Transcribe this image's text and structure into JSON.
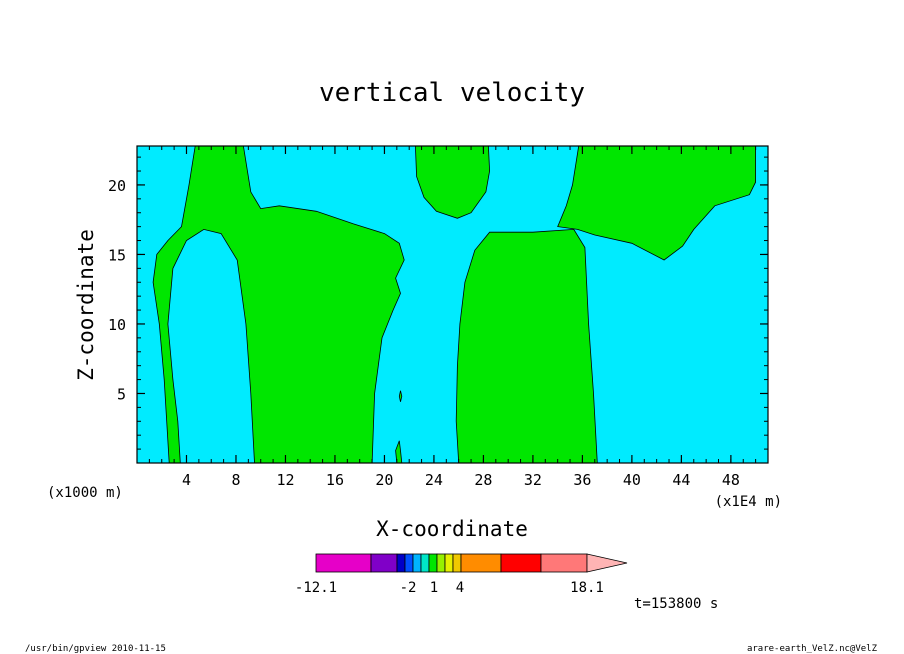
{
  "chart_data": {
    "type": "heatmap",
    "title": "vertical velocity",
    "xlabel": "X-coordinate",
    "ylabel": "Z-coordinate",
    "x_unit_left": "(x1000 m)",
    "x_unit_right": "(x1E4 m)",
    "x_ticks": [
      4,
      8,
      12,
      16,
      20,
      24,
      28,
      32,
      36,
      40,
      44,
      48
    ],
    "y_ticks": [
      5,
      10,
      15,
      20
    ],
    "xlim": [
      0,
      51
    ],
    "ylim": [
      0,
      22.8
    ],
    "fill_colors": {
      "positive": "#00e600",
      "negative": "#00ebff"
    },
    "regions": [
      {
        "sign": "positive",
        "outline": [
          [
            2.6,
            0
          ],
          [
            3.5,
            0
          ],
          [
            3.3,
            3
          ],
          [
            2.9,
            6
          ],
          [
            2.5,
            10
          ],
          [
            2.9,
            14
          ],
          [
            4,
            16
          ],
          [
            5.4,
            16.8
          ],
          [
            6.8,
            16.5
          ],
          [
            8.1,
            14.6
          ],
          [
            8.8,
            10
          ],
          [
            9.2,
            5
          ],
          [
            9.5,
            0
          ],
          [
            19,
            0
          ],
          [
            19.2,
            5
          ],
          [
            19.8,
            9
          ],
          [
            20.7,
            11
          ],
          [
            21.3,
            12.2
          ],
          [
            20.9,
            13.3
          ],
          [
            21.6,
            14.6
          ],
          [
            21.2,
            15.8
          ],
          [
            20,
            16.5
          ],
          [
            17.5,
            17.2
          ],
          [
            14.5,
            18.1
          ],
          [
            11.5,
            18.5
          ],
          [
            10,
            18.3
          ],
          [
            9.2,
            19.5
          ],
          [
            8.6,
            22.8
          ],
          [
            4.7,
            22.8
          ],
          [
            4.2,
            20
          ],
          [
            3.6,
            17
          ],
          [
            2.5,
            16
          ],
          [
            1.6,
            15
          ],
          [
            1.3,
            13
          ],
          [
            1.8,
            10
          ],
          [
            2.2,
            6
          ],
          [
            2.4,
            3
          ]
        ]
      },
      {
        "sign": "positive",
        "outline": [
          [
            21.0,
            0
          ],
          [
            21.4,
            0
          ],
          [
            21.3,
            0.9
          ],
          [
            21.2,
            1.6
          ],
          [
            20.9,
            0.9
          ]
        ]
      },
      {
        "sign": "positive",
        "outline": [
          [
            21.3,
            4.4
          ],
          [
            21.4,
            4.8
          ],
          [
            21.3,
            5.2
          ],
          [
            21.2,
            4.8
          ]
        ]
      },
      {
        "sign": "positive",
        "outline": [
          [
            26,
            0
          ],
          [
            37.2,
            0
          ],
          [
            36.9,
            5
          ],
          [
            36.5,
            10
          ],
          [
            36.2,
            15.5
          ],
          [
            35.3,
            16.8
          ],
          [
            32,
            16.6
          ],
          [
            28.5,
            16.6
          ],
          [
            27.3,
            15.3
          ],
          [
            26.5,
            13
          ],
          [
            26.1,
            10
          ],
          [
            25.9,
            7
          ],
          [
            25.8,
            3
          ]
        ]
      },
      {
        "sign": "positive",
        "outline": [
          [
            21.9,
            22.8
          ],
          [
            35.7,
            22.8
          ],
          [
            35.2,
            20
          ],
          [
            34.7,
            18.5
          ],
          [
            34,
            17
          ],
          [
            35.6,
            16.8
          ],
          [
            37,
            16.4
          ],
          [
            40,
            15.8
          ],
          [
            42.6,
            14.6
          ],
          [
            44.1,
            15.6
          ],
          [
            45,
            16.8
          ],
          [
            46.7,
            18.5
          ],
          [
            49.5,
            19.3
          ],
          [
            50,
            20.2
          ],
          [
            50,
            22.8
          ]
        ]
      },
      {
        "sign": "positive",
        "outline": [
          [
            22.5,
            22.8
          ],
          [
            22.6,
            20.6
          ],
          [
            23.2,
            19.1
          ],
          [
            24.2,
            18.1
          ],
          [
            25.9,
            17.6
          ],
          [
            27,
            18
          ],
          [
            28.2,
            19.5
          ],
          [
            28.5,
            21
          ],
          [
            28.4,
            22.8
          ]
        ]
      }
    ],
    "colorbar": {
      "labels": [
        "-12.1",
        "-2",
        "1",
        "4",
        "18.1"
      ],
      "colors": [
        "#e600c8",
        "#8000c8",
        "#0000c8",
        "#0050ff",
        "#00b4ff",
        "#00e6c8",
        "#00e600",
        "#96f000",
        "#e6f000",
        "#f0c800",
        "#ff8c00",
        "#ff6400",
        "#ff0000",
        "#ff7878",
        "#ffb4b4"
      ],
      "extend": "max"
    }
  },
  "annotations": {
    "time": "t=153800 s",
    "footer_left": "/usr/bin/gpview   2010-11-15",
    "footer_right": "arare-earth_VelZ.nc@VelZ"
  }
}
